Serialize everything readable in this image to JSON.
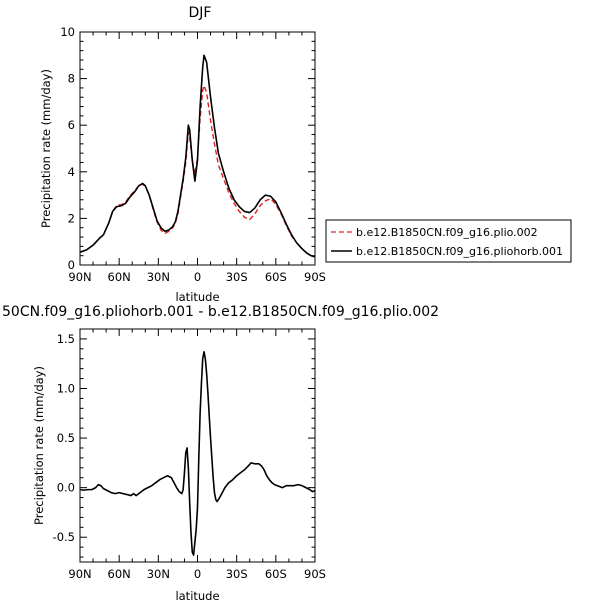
{
  "chart_data": [
    {
      "type": "line",
      "title": "DJF",
      "xlabel": "latitude",
      "ylabel": "Precipitation rate (mm/day)",
      "xlim": [
        -90,
        90
      ],
      "ylim": [
        0,
        10
      ],
      "x_tick_values": [
        -90,
        -60,
        -30,
        0,
        30,
        60,
        90
      ],
      "x_tick_labels": [
        "90N",
        "60N",
        "30N",
        "0",
        "30S",
        "60S",
        "90S"
      ],
      "y_tick_values": [
        0,
        2,
        4,
        6,
        8,
        10
      ],
      "y_tick_labels": [
        "0",
        "2",
        "4",
        "6",
        "8",
        "10"
      ],
      "grid": false,
      "legend_position": "right",
      "series": [
        {
          "name": "b.e12.B1850CN.f09_g16.plio.002",
          "color": "#e02020",
          "dash": "dashed",
          "points": [
            [
              -90,
              0.55
            ],
            [
              -85,
              0.65
            ],
            [
              -80,
              0.85
            ],
            [
              -75,
              1.15
            ],
            [
              -72,
              1.3
            ],
            [
              -68,
              1.8
            ],
            [
              -65,
              2.3
            ],
            [
              -62,
              2.55
            ],
            [
              -58,
              2.6
            ],
            [
              -55,
              2.7
            ],
            [
              -52,
              2.95
            ],
            [
              -48,
              3.2
            ],
            [
              -45,
              3.4
            ],
            [
              -42,
              3.45
            ],
            [
              -40,
              3.4
            ],
            [
              -37,
              3.0
            ],
            [
              -34,
              2.4
            ],
            [
              -31,
              1.85
            ],
            [
              -28,
              1.5
            ],
            [
              -25,
              1.35
            ],
            [
              -22,
              1.45
            ],
            [
              -19,
              1.6
            ],
            [
              -17,
              1.8
            ],
            [
              -15,
              2.2
            ],
            [
              -13,
              2.9
            ],
            [
              -11,
              3.6
            ],
            [
              -9,
              4.4
            ],
            [
              -7,
              5.7
            ],
            [
              -6,
              5.5
            ],
            [
              -4,
              4.5
            ],
            [
              -2,
              3.9
            ],
            [
              0,
              4.6
            ],
            [
              2,
              6.3
            ],
            [
              4,
              7.5
            ],
            [
              5,
              7.7
            ],
            [
              7,
              7.4
            ],
            [
              10,
              6.2
            ],
            [
              13,
              5.2
            ],
            [
              16,
              4.3
            ],
            [
              20,
              3.7
            ],
            [
              24,
              3.1
            ],
            [
              28,
              2.65
            ],
            [
              32,
              2.3
            ],
            [
              36,
              2.05
            ],
            [
              40,
              1.95
            ],
            [
              44,
              2.2
            ],
            [
              48,
              2.55
            ],
            [
              52,
              2.75
            ],
            [
              56,
              2.85
            ],
            [
              60,
              2.6
            ],
            [
              64,
              2.2
            ],
            [
              68,
              1.7
            ],
            [
              72,
              1.25
            ],
            [
              76,
              0.95
            ],
            [
              80,
              0.7
            ],
            [
              84,
              0.5
            ],
            [
              87,
              0.4
            ],
            [
              90,
              0.35
            ]
          ]
        },
        {
          "name": "b.e12.B1850CN.f09_g16.pliohorb.001",
          "color": "#000000",
          "dash": "solid",
          "points": [
            [
              -90,
              0.55
            ],
            [
              -85,
              0.65
            ],
            [
              -80,
              0.85
            ],
            [
              -75,
              1.15
            ],
            [
              -72,
              1.3
            ],
            [
              -68,
              1.8
            ],
            [
              -65,
              2.3
            ],
            [
              -62,
              2.5
            ],
            [
              -58,
              2.55
            ],
            [
              -55,
              2.65
            ],
            [
              -52,
              2.9
            ],
            [
              -48,
              3.15
            ],
            [
              -45,
              3.4
            ],
            [
              -42,
              3.5
            ],
            [
              -40,
              3.4
            ],
            [
              -37,
              3.0
            ],
            [
              -34,
              2.45
            ],
            [
              -31,
              1.9
            ],
            [
              -28,
              1.6
            ],
            [
              -25,
              1.45
            ],
            [
              -22,
              1.5
            ],
            [
              -19,
              1.65
            ],
            [
              -17,
              1.85
            ],
            [
              -15,
              2.3
            ],
            [
              -13,
              3.0
            ],
            [
              -11,
              3.7
            ],
            [
              -9,
              4.6
            ],
            [
              -7,
              6.0
            ],
            [
              -6,
              5.8
            ],
            [
              -4,
              4.5
            ],
            [
              -2,
              3.6
            ],
            [
              0,
              4.5
            ],
            [
              2,
              6.8
            ],
            [
              4,
              8.5
            ],
            [
              5,
              9.0
            ],
            [
              7,
              8.7
            ],
            [
              10,
              7.2
            ],
            [
              13,
              5.9
            ],
            [
              16,
              4.8
            ],
            [
              20,
              4.0
            ],
            [
              24,
              3.3
            ],
            [
              28,
              2.8
            ],
            [
              32,
              2.5
            ],
            [
              36,
              2.3
            ],
            [
              40,
              2.25
            ],
            [
              44,
              2.45
            ],
            [
              48,
              2.8
            ],
            [
              52,
              3.0
            ],
            [
              56,
              2.95
            ],
            [
              60,
              2.7
            ],
            [
              64,
              2.25
            ],
            [
              68,
              1.75
            ],
            [
              72,
              1.3
            ],
            [
              76,
              0.95
            ],
            [
              80,
              0.7
            ],
            [
              84,
              0.5
            ],
            [
              87,
              0.4
            ],
            [
              90,
              0.35
            ]
          ]
        }
      ]
    },
    {
      "type": "line",
      "title": "50CN.f09_g16.pliohorb.001 - b.e12.B1850CN.f09_g16.plio.002",
      "xlabel": "latitude",
      "ylabel": "Precipitation rate (mm/day)",
      "xlim": [
        -90,
        90
      ],
      "ylim": [
        -0.75,
        1.6
      ],
      "x_tick_values": [
        -90,
        -60,
        -30,
        0,
        30,
        60,
        90
      ],
      "x_tick_labels": [
        "90N",
        "60N",
        "30N",
        "0",
        "30S",
        "60S",
        "90S"
      ],
      "y_tick_values": [
        -0.5,
        0,
        0.5,
        1,
        1.5
      ],
      "y_tick_labels": [
        "-0.5",
        "0.0",
        "0.5",
        "1.0",
        "1.5"
      ],
      "grid": false,
      "series": [
        {
          "color": "#000000",
          "dash": "solid",
          "points": [
            [
              -90,
              -0.02
            ],
            [
              -87,
              -0.025
            ],
            [
              -84,
              -0.02
            ],
            [
              -81,
              -0.02
            ],
            [
              -78,
              0.0
            ],
            [
              -76,
              0.03
            ],
            [
              -74,
              0.02
            ],
            [
              -72,
              -0.01
            ],
            [
              -69,
              -0.03
            ],
            [
              -66,
              -0.05
            ],
            [
              -63,
              -0.06
            ],
            [
              -60,
              -0.05
            ],
            [
              -57,
              -0.06
            ],
            [
              -54,
              -0.07
            ],
            [
              -51,
              -0.08
            ],
            [
              -49,
              -0.06
            ],
            [
              -47,
              -0.08
            ],
            [
              -45,
              -0.06
            ],
            [
              -43,
              -0.04
            ],
            [
              -41,
              -0.02
            ],
            [
              -38,
              0.0
            ],
            [
              -35,
              0.02
            ],
            [
              -32,
              0.05
            ],
            [
              -29,
              0.08
            ],
            [
              -26,
              0.1
            ],
            [
              -23,
              0.12
            ],
            [
              -20,
              0.1
            ],
            [
              -18,
              0.05
            ],
            [
              -16,
              0.0
            ],
            [
              -14,
              -0.04
            ],
            [
              -12,
              -0.06
            ],
            [
              -11,
              -0.02
            ],
            [
              -10,
              0.15
            ],
            [
              -9,
              0.35
            ],
            [
              -8,
              0.4
            ],
            [
              -7,
              0.2
            ],
            [
              -6,
              -0.15
            ],
            [
              -5,
              -0.45
            ],
            [
              -4,
              -0.65
            ],
            [
              -3,
              -0.68
            ],
            [
              -2,
              -0.55
            ],
            [
              -1,
              -0.42
            ],
            [
              0,
              -0.2
            ],
            [
              1,
              0.3
            ],
            [
              2,
              0.75
            ],
            [
              3,
              1.05
            ],
            [
              4,
              1.3
            ],
            [
              5,
              1.37
            ],
            [
              6,
              1.3
            ],
            [
              7,
              1.15
            ],
            [
              8,
              0.95
            ],
            [
              9,
              0.72
            ],
            [
              10,
              0.5
            ],
            [
              11,
              0.3
            ],
            [
              12,
              0.1
            ],
            [
              13,
              -0.05
            ],
            [
              14,
              -0.12
            ],
            [
              15,
              -0.14
            ],
            [
              16,
              -0.12
            ],
            [
              17,
              -0.1
            ],
            [
              19,
              -0.05
            ],
            [
              21,
              0.0
            ],
            [
              24,
              0.05
            ],
            [
              27,
              0.08
            ],
            [
              30,
              0.12
            ],
            [
              33,
              0.15
            ],
            [
              36,
              0.18
            ],
            [
              39,
              0.22
            ],
            [
              41,
              0.25
            ],
            [
              44,
              0.24
            ],
            [
              47,
              0.24
            ],
            [
              49,
              0.22
            ],
            [
              51,
              0.18
            ],
            [
              53,
              0.12
            ],
            [
              55,
              0.08
            ],
            [
              57,
              0.05
            ],
            [
              59,
              0.03
            ],
            [
              61,
              0.02
            ],
            [
              63,
              0.01
            ],
            [
              65,
              0.0
            ],
            [
              68,
              0.02
            ],
            [
              71,
              0.02
            ],
            [
              74,
              0.02
            ],
            [
              77,
              0.03
            ],
            [
              80,
              0.02
            ],
            [
              83,
              0.0
            ],
            [
              86,
              -0.02
            ],
            [
              88,
              -0.04
            ],
            [
              90,
              -0.03
            ]
          ]
        }
      ]
    }
  ]
}
